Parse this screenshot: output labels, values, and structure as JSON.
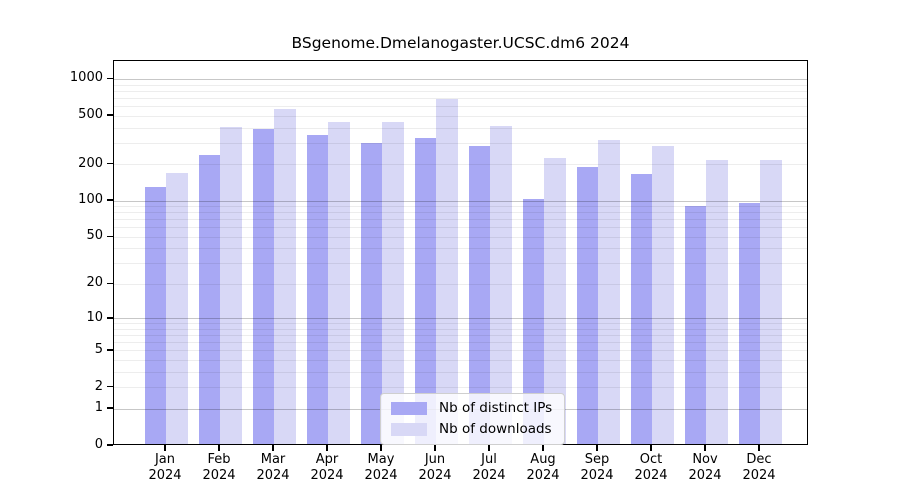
{
  "chart_data": {
    "type": "bar",
    "title": "BSgenome.Dmelanogaster.UCSC.dm6 2024",
    "categories": [
      "Jan 2024",
      "Feb 2024",
      "Mar 2024",
      "Apr 2024",
      "May 2024",
      "Jun 2024",
      "Jul 2024",
      "Aug 2024",
      "Sep 2024",
      "Oct 2024",
      "Nov 2024",
      "Dec 2024"
    ],
    "series": [
      {
        "name": "Nb of distinct IPs",
        "color": "#a8a8f4",
        "values": [
          125,
          230,
          375,
          340,
          290,
          320,
          275,
          100,
          185,
          160,
          88,
          93
        ]
      },
      {
        "name": "Nb of downloads",
        "color": "#d8d8f6",
        "values": [
          165,
          395,
          550,
          430,
          430,
          670,
          400,
          220,
          305,
          275,
          210,
          210
        ]
      }
    ],
    "xlabel": "",
    "ylabel": "",
    "y_axis": {
      "scale": "log1p",
      "ticks": [
        0,
        1,
        2,
        5,
        10,
        20,
        50,
        100,
        200,
        500,
        1000
      ],
      "top_value": 1400
    },
    "grid": {
      "major_values": [
        1,
        10,
        100,
        1000
      ],
      "major_color": "rgba(0,0,0,0.22)",
      "minor_color": "rgba(0,0,0,0.07)"
    },
    "legend_position": "bottom-center-inside"
  }
}
